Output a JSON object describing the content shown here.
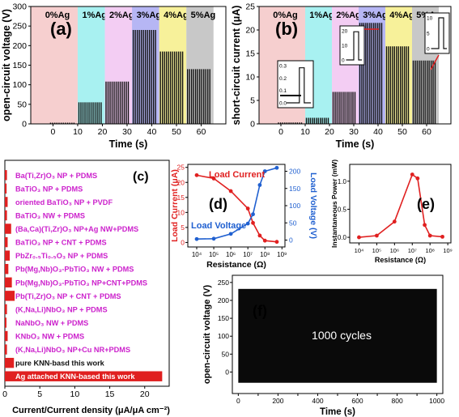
{
  "chart_data": [
    {
      "type": "bar",
      "panel": "(a)",
      "ylabel": "open-circuit voltage (V)",
      "xlabel": "Time (s)",
      "xticks": [
        0,
        10,
        20,
        30,
        40,
        50,
        60
      ],
      "yticks": [
        0,
        50,
        100,
        150,
        200,
        250,
        300
      ],
      "xlim": [
        -9,
        70
      ],
      "ylim": [
        0,
        300
      ],
      "segments": [
        {
          "label": "0%Ag",
          "x0": -9,
          "x1": 10,
          "color": "#f6cfcf",
          "peak": 3
        },
        {
          "label": "1%Ag",
          "x0": 10,
          "x1": 21,
          "color": "#a8f1f1",
          "peak": 55
        },
        {
          "label": "2%Ag",
          "x0": 21,
          "x1": 32,
          "color": "#f3cdf3",
          "peak": 108
        },
        {
          "label": "3%Ag",
          "x0": 32,
          "x1": 43,
          "color": "#b6b6f4",
          "peak": 240
        },
        {
          "label": "4%Ag",
          "x0": 43,
          "x1": 54,
          "color": "#f7f19a",
          "peak": 185
        },
        {
          "label": "5%Ag",
          "x0": 54,
          "x1": 65,
          "color": "#c8c8c8",
          "peak": 140
        }
      ]
    },
    {
      "type": "bar",
      "panel": "(b)",
      "ylabel": "short-circuit current (μA)",
      "xlabel": "Time (s)",
      "xticks": [
        0,
        10,
        20,
        30,
        40,
        50,
        60
      ],
      "yticks": [
        0,
        5,
        10,
        15,
        20,
        25
      ],
      "xlim": [
        -9,
        70
      ],
      "ylim": [
        0,
        25
      ],
      "segments": [
        {
          "label": "0%Ag",
          "x0": -9,
          "x1": 10,
          "color": "#f6cfcf",
          "peak": 0.3
        },
        {
          "label": "1%Ag",
          "x0": 10,
          "x1": 21,
          "color": "#a8f1f1",
          "peak": 1.3
        },
        {
          "label": "2%Ag",
          "x0": 21,
          "x1": 32,
          "color": "#f3cdf3",
          "peak": 6.8
        },
        {
          "label": "3%Ag",
          "x0": 32,
          "x1": 43,
          "color": "#b6b6f4",
          "peak": 21.5
        },
        {
          "label": "4%Ag",
          "x0": 43,
          "x1": 54,
          "color": "#f7f19a",
          "peak": 16.5
        },
        {
          "label": "5%Ag",
          "x0": 54,
          "x1": 65,
          "color": "#c8c8c8",
          "peak": 13.5
        }
      ],
      "insets": [
        {
          "yticks": [
            "0.3",
            "0.2",
            "0.1",
            "0.0"
          ]
        },
        {
          "yticks": [
            "20",
            "10",
            "0"
          ]
        },
        {
          "yticks": [
            "10",
            "5",
            "0"
          ]
        }
      ]
    },
    {
      "type": "bar",
      "panel": "(c)",
      "orientation": "horizontal",
      "xlabel": "Current/Current density (μA/μA cm⁻²)",
      "xticks": [
        0,
        5,
        10,
        15,
        20
      ],
      "xlim": [
        0,
        23.5
      ],
      "categories": [
        "Ba(Ti,Zr)O₃ NP + PDMS",
        "BaTiO₃ NP + PDMS",
        "oriented BaTiO₃ NP + PVDF",
        "BaTiO₃ NW + PDMS",
        "(Ba,Ca)(Ti,Zr)O₃ NP+Ag NW+PDMS",
        "BaTiO₃ NP + CNT + PDMS",
        "PbZr₀.₅Ti₀.₅O₃ NP + PDMS",
        "Pb(Mg,Nb)O₃-PbTiO₃ NW + PDMS",
        "Pb(Mg,Nb)O₃-PbTiO₃ NP+CNT+PDMS",
        "Pb(Ti,Zr)O₃ NP + CNT + PDMS",
        "(K,Na,Li)NbO₃ NP + PDMS",
        "NaNbO₃ NW + PDMS",
        "KNbO₃ NW + PDMS",
        "(K,Na,Li)NbO₃ NP+Cu NR+PDMS",
        "pure KNN-basd this work",
        "Ag attached KNN-based this work"
      ],
      "values": [
        0.3,
        0.25,
        0.4,
        0.3,
        0.9,
        0.4,
        0.7,
        0.5,
        1.0,
        1.4,
        0.3,
        0.2,
        0.4,
        0.3,
        1.3,
        22.5
      ]
    },
    {
      "type": "line",
      "panel": "(d)",
      "xlabel": "Resistance (Ω)",
      "xscale": "log",
      "xlim": [
        3000,
        1500000000
      ],
      "xticks": [
        "10⁴",
        "10⁵",
        "10⁶",
        "10⁷",
        "10⁸",
        "10⁹"
      ],
      "ylabel_left": "Load Current (μA)",
      "ylabel_right": "Load Voltage (V)",
      "ylim_left": [
        -1.5,
        26
      ],
      "ylim_right": [
        -20,
        220
      ],
      "yticks_left": [
        0,
        5,
        10,
        15,
        20,
        25
      ],
      "yticks_right": [
        0,
        50,
        100,
        150,
        200
      ],
      "x": [
        10000,
        100000,
        1000000,
        10000000,
        20000000,
        50000000,
        100000000,
        500000000
      ],
      "series": [
        {
          "name": "Load Current",
          "axis": "left",
          "color": "#e02020",
          "values": [
            22.4,
            21.3,
            17.1,
            11.3,
            6.5,
            2.3,
            0.6,
            0.2
          ]
        },
        {
          "name": "Load Voltage",
          "axis": "right",
          "color": "#2060d0",
          "values": [
            3,
            4,
            18,
            48,
            75,
            160,
            200,
            210
          ]
        }
      ]
    },
    {
      "type": "line",
      "panel": "(e)",
      "xlabel": "Resistance (Ω)",
      "ylabel": "Instantaneous Power (mW)",
      "xscale": "log",
      "xlim": [
        3000,
        1500000000
      ],
      "xticks": [
        "10⁴",
        "10⁵",
        "10⁶",
        "10⁷",
        "10⁸",
        "10⁹"
      ],
      "ylim": [
        -0.1,
        1.3
      ],
      "yticks": [
        "0.0",
        "0.5",
        "1.0"
      ],
      "x": [
        10000,
        100000,
        1000000,
        10000000,
        20000000,
        50000000,
        100000000,
        500000000
      ],
      "series": [
        {
          "name": "",
          "color": "#e02020",
          "values": [
            0.0,
            0.03,
            0.28,
            1.12,
            1.05,
            0.22,
            0.03,
            0.01
          ]
        }
      ]
    },
    {
      "type": "area",
      "panel": "(f)",
      "xlabel": "Time (s)",
      "ylabel": "open-circuit voltage (V)",
      "annotation": "1000 cycles",
      "xlim": [
        -30,
        1030
      ],
      "ylim": [
        -60,
        270
      ],
      "xticks": [
        0,
        100,
        200,
        300,
        400,
        500,
        600,
        700,
        800,
        900,
        1000
      ],
      "yticks": [
        0,
        50,
        100,
        150,
        200,
        250
      ],
      "band": {
        "x0": 0,
        "x1": 1000,
        "ymin": -30,
        "ymax": 232
      }
    }
  ]
}
